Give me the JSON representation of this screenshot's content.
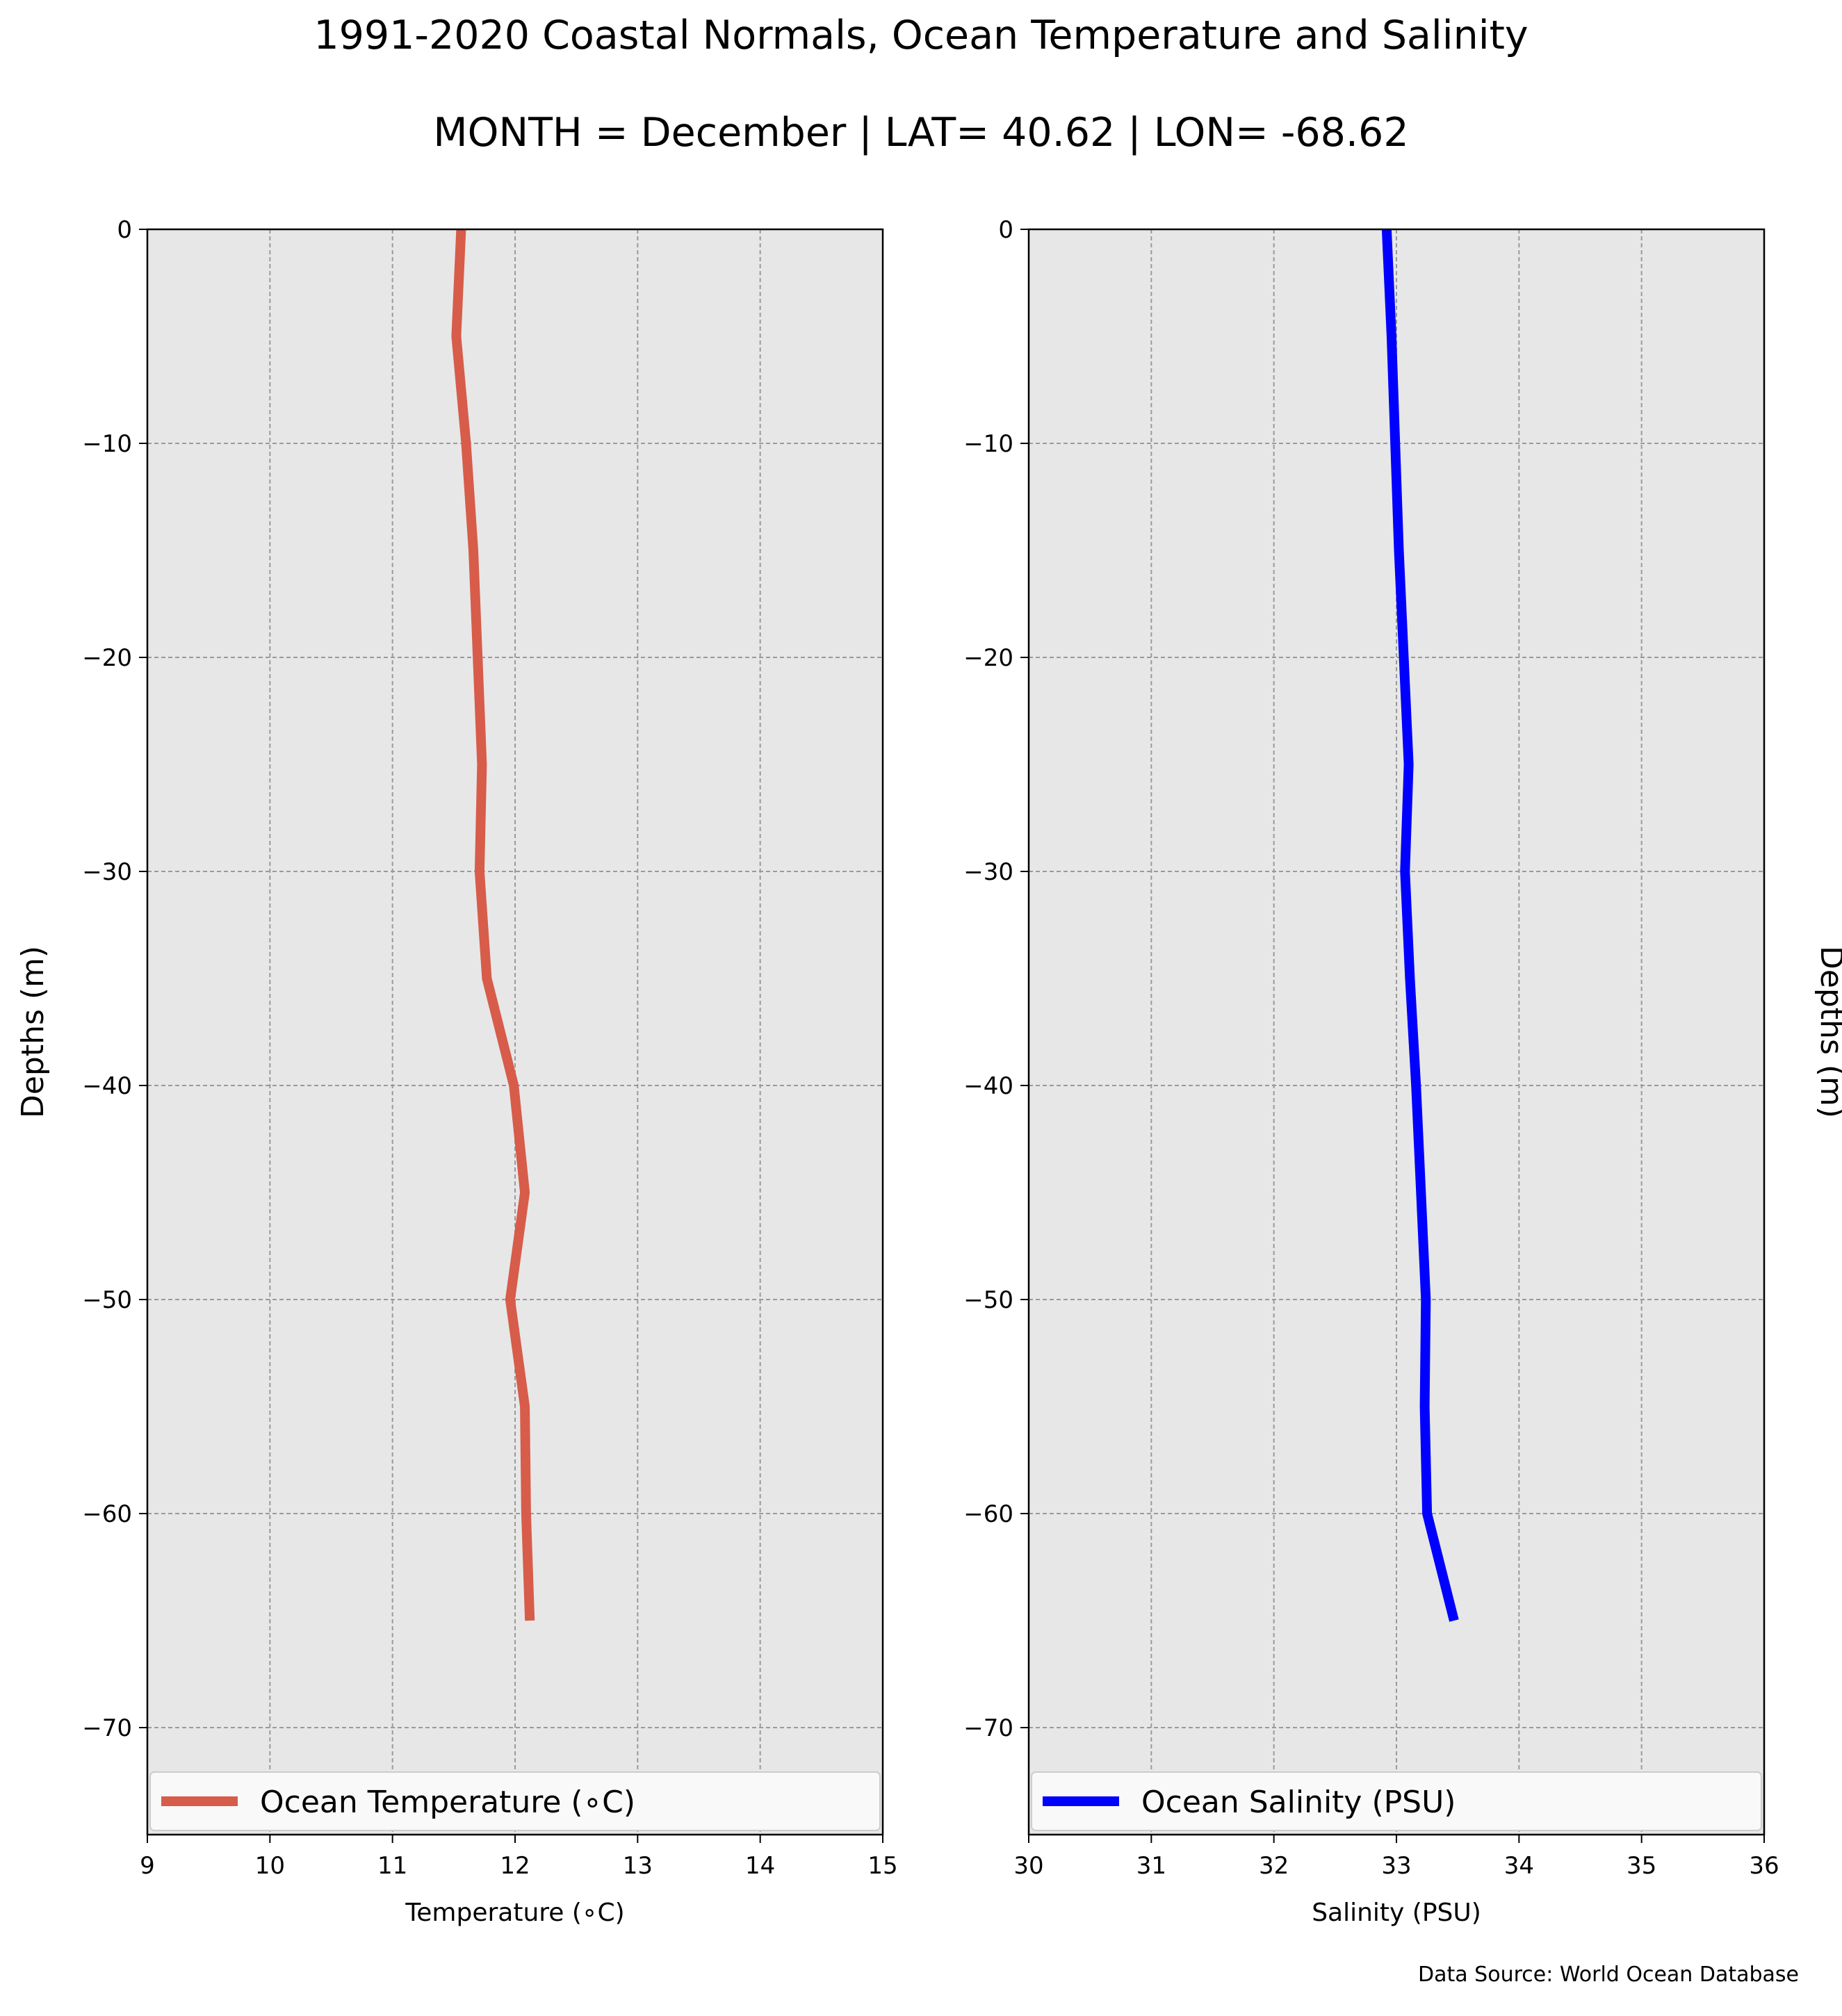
{
  "title": "1991-2020 Coastal Normals, Ocean Temperature and Salinity",
  "subtitle": "MONTH = December | LAT= 40.62 | LON= -68.62",
  "source": "Data Source: World Ocean Database",
  "chart_data": [
    {
      "type": "line",
      "xlabel": "Temperature ($^\\circ$C)",
      "xlabel_display": "Temperature (∘C)",
      "ylabel": "Depths (m)",
      "xlim": [
        9,
        15
      ],
      "ylim": [
        -75,
        0
      ],
      "xticks": [
        9,
        10,
        11,
        12,
        13,
        14,
        15
      ],
      "yticks": [
        0,
        -10,
        -20,
        -30,
        -40,
        -50,
        -60,
        -70
      ],
      "grid": true,
      "legend": "lower-center",
      "ylabel_side": "left",
      "series": [
        {
          "name": "Ocean Temperature (∘C)",
          "color": "#d75c4a",
          "x": [
            11.56,
            11.52,
            11.6,
            11.66,
            11.73,
            11.71,
            11.77,
            11.99,
            12.08,
            11.96,
            12.08,
            12.09,
            12.12
          ],
          "y": [
            0,
            -5,
            -10,
            -15,
            -25,
            -30,
            -35,
            -40,
            -45,
            -50,
            -55,
            -60,
            -65
          ]
        }
      ]
    },
    {
      "type": "line",
      "xlabel": "Salinity (PSU)",
      "ylabel": "Depths (m)",
      "xlim": [
        30,
        36
      ],
      "ylim": [
        -75,
        0
      ],
      "xticks": [
        30,
        31,
        32,
        33,
        34,
        35,
        36
      ],
      "yticks": [
        0,
        -10,
        -20,
        -30,
        -40,
        -50,
        -60,
        -70
      ],
      "grid": true,
      "legend": "lower-center",
      "ylabel_side": "right",
      "series": [
        {
          "name": "Ocean Salinity (PSU)",
          "color": "#0000ff",
          "x": [
            32.92,
            32.96,
            32.99,
            33.02,
            33.1,
            33.07,
            33.11,
            33.16,
            33.2,
            33.24,
            33.23,
            33.25,
            33.47
          ],
          "y": [
            0,
            -5,
            -10,
            -15,
            -25,
            -30,
            -35,
            -40,
            -45,
            -50,
            -55,
            -60,
            -65
          ]
        }
      ]
    }
  ]
}
